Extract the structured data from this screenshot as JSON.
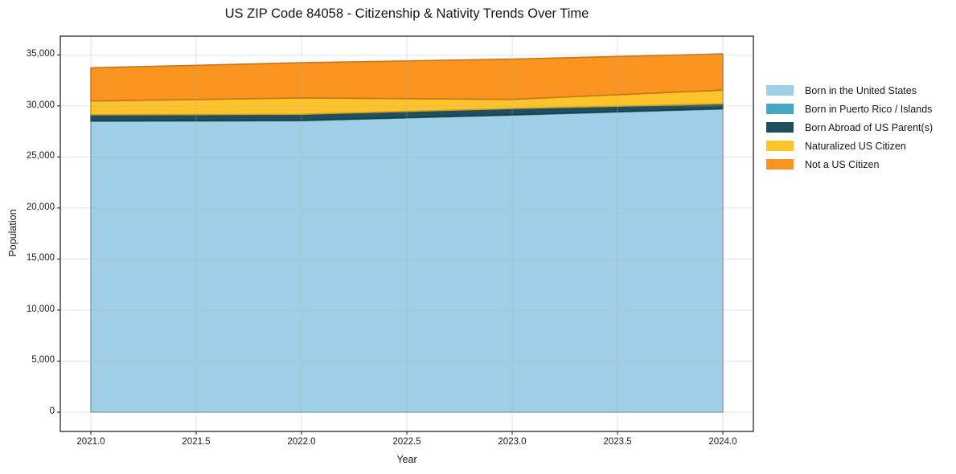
{
  "figure": {
    "title": "US ZIP Code 84058 - Citizenship & Nativity Trends Over Time",
    "xlabel": "Year",
    "ylabel": "Population"
  },
  "chart_data": {
    "type": "area",
    "stacked": true,
    "title": "US ZIP Code 84058 - Citizenship & Nativity Trends Over Time",
    "xlabel": "Year",
    "ylabel": "Population",
    "x": [
      2021,
      2022,
      2023,
      2024
    ],
    "series": [
      {
        "name": "Born in the United States",
        "color": "#9fcfe6",
        "values": [
          28500,
          28550,
          29100,
          29700
        ]
      },
      {
        "name": "Born in Puerto Rico / Islands",
        "color": "#45a7c1",
        "values": [
          30,
          30,
          40,
          50
        ]
      },
      {
        "name": "Born Abroad of US Parent(s)",
        "color": "#1f4e5f",
        "values": [
          600,
          600,
          600,
          450
        ]
      },
      {
        "name": "Naturalized US Citizen",
        "color": "#fcc32b",
        "values": [
          1350,
          1600,
          900,
          1350
        ]
      },
      {
        "name": "Not a US Citizen",
        "color": "#f8941f",
        "values": [
          3250,
          3450,
          3950,
          3550
        ]
      }
    ],
    "stacked_totals": [
      33730,
      34230,
      34590,
      35100
    ],
    "xlim": [
      2020.85,
      2024.15
    ],
    "ylim": [
      0,
      35000
    ],
    "xticks": {
      "values": [
        2021,
        2021.5,
        2022,
        2022.5,
        2023,
        2023.5,
        2024
      ],
      "labels": [
        "2021.0",
        "2021.5",
        "2022.0",
        "2022.5",
        "2023.0",
        "2023.5",
        "2024.0"
      ]
    },
    "yticks": {
      "values": [
        0,
        5000,
        10000,
        15000,
        20000,
        25000,
        30000,
        35000
      ],
      "labels": [
        "0",
        "5,000",
        "10,000",
        "15,000",
        "20,000",
        "25,000",
        "30,000",
        "35,000"
      ]
    },
    "grid": true,
    "legend_position": "right of plot, frameless"
  }
}
